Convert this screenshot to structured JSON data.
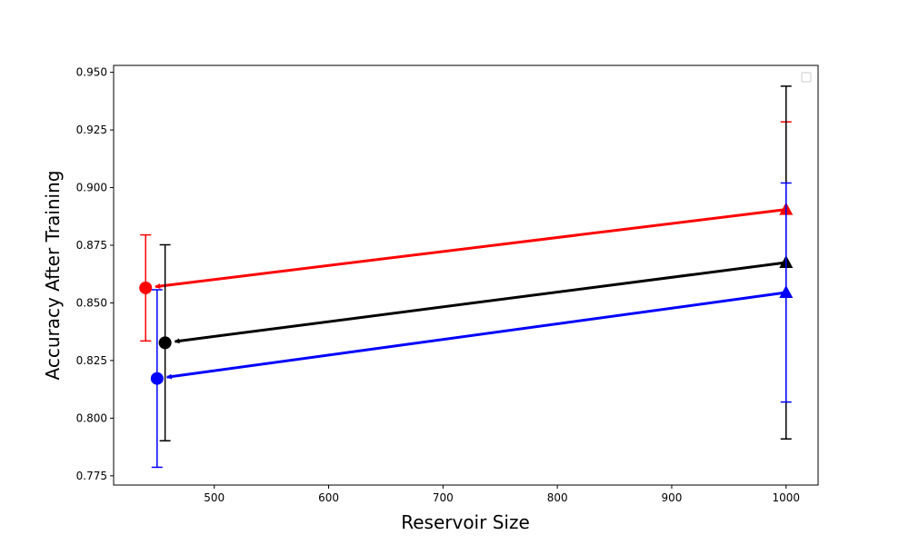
{
  "chart_data": {
    "type": "line",
    "title": "",
    "xlabel": "Reservoir Size",
    "ylabel": "Accuracy After Training",
    "xlim": [
      412,
      1028
    ],
    "ylim": [
      0.771,
      0.953
    ],
    "x_ticks": [
      500,
      600,
      700,
      800,
      900,
      1000
    ],
    "y_ticks": [
      0.775,
      0.8,
      0.825,
      0.85,
      0.875,
      0.9,
      0.925,
      0.95
    ],
    "x_tick_labels": [
      "500",
      "600",
      "700",
      "800",
      "900",
      "1000"
    ],
    "y_tick_labels": [
      "0.775",
      "0.800",
      "0.825",
      "0.850",
      "0.875",
      "0.900",
      "0.925",
      "0.950"
    ],
    "grid": false,
    "legend": "top-right",
    "legend_entries": [],
    "series": [
      {
        "color": "#ff0000",
        "points": [
          {
            "x": 440,
            "y": 0.8565,
            "err": 0.023,
            "marker": "circle"
          },
          {
            "x": 1000,
            "y": 0.8905,
            "err": 0.038,
            "marker": "triangle"
          }
        ]
      },
      {
        "color": "#000000",
        "points": [
          {
            "x": 457,
            "y": 0.8327,
            "err": 0.0425,
            "marker": "circle"
          },
          {
            "x": 1000,
            "y": 0.8675,
            "err": 0.0765,
            "marker": "triangle"
          }
        ]
      },
      {
        "color": "#0000ff",
        "points": [
          {
            "x": 450,
            "y": 0.8172,
            "err": 0.0385,
            "marker": "circle"
          },
          {
            "x": 1000,
            "y": 0.8545,
            "err": 0.0475,
            "marker": "triangle"
          }
        ]
      }
    ]
  }
}
